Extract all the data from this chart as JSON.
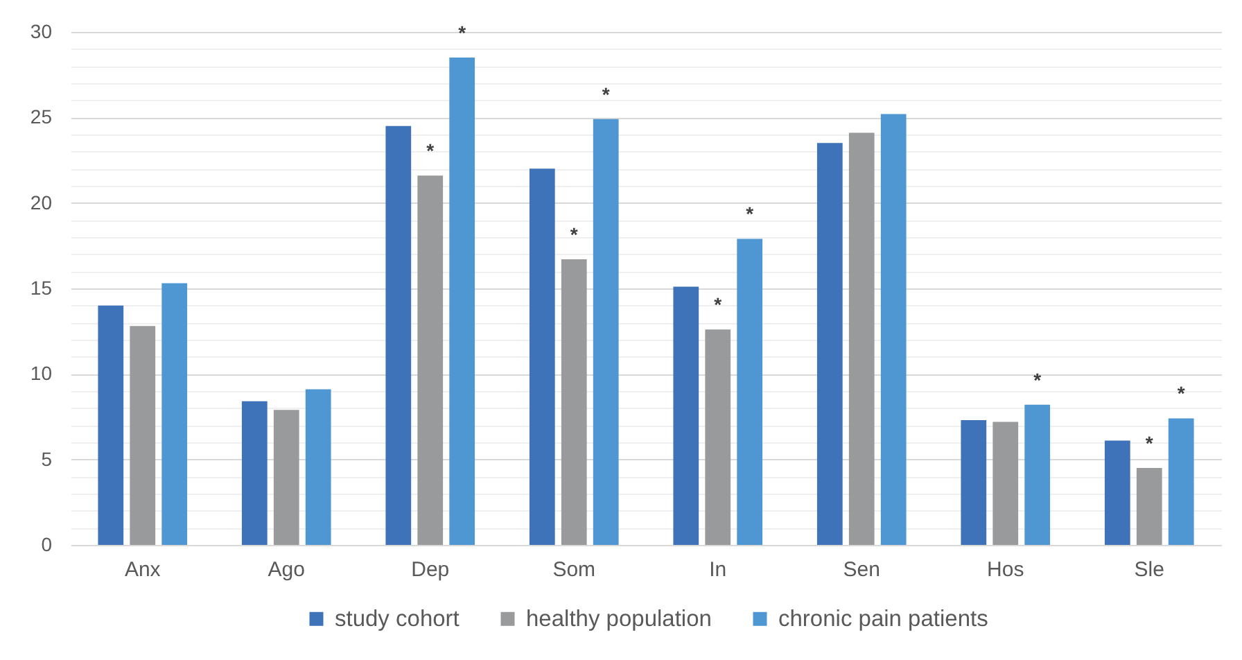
{
  "chart_data": {
    "type": "bar",
    "categories": [
      "Anx",
      "Ago",
      "Dep",
      "Som",
      "In",
      "Sen",
      "Hos",
      "Sle"
    ],
    "series": [
      {
        "name": "study cohort",
        "color": "#3e72b9",
        "values": [
          14.0,
          8.4,
          24.5,
          22.0,
          15.1,
          23.5,
          7.3,
          6.1
        ]
      },
      {
        "name": "healthy population",
        "color": "#989a9b",
        "values": [
          12.8,
          7.9,
          21.6,
          16.7,
          12.6,
          24.1,
          7.2,
          4.5
        ],
        "value_labels": [
          null,
          null,
          "*",
          "*",
          "*",
          null,
          null,
          "*"
        ]
      },
      {
        "name": "chronic pain patients",
        "color": "#4f97d2",
        "values": [
          15.3,
          9.1,
          28.5,
          24.9,
          17.9,
          25.2,
          8.2,
          7.4
        ],
        "value_labels": [
          null,
          null,
          "*",
          "*",
          "*",
          null,
          "*",
          "*"
        ]
      }
    ],
    "ylim": [
      0,
      30
    ],
    "yticks": [
      0,
      {
        "value": 1,
        "label": null
      },
      {
        "value": 2,
        "label": null
      },
      {
        "value": 3,
        "label": null
      },
      {
        "value": 4,
        "label": null
      },
      5,
      {
        "value": 6,
        "label": null
      },
      {
        "value": 7,
        "label": null
      },
      {
        "value": 8,
        "label": null
      },
      {
        "value": 9,
        "label": null
      },
      10,
      {
        "value": 11,
        "label": null
      },
      {
        "value": 12,
        "label": null
      },
      {
        "value": 13,
        "label": null
      },
      {
        "value": 14,
        "label": null
      },
      15,
      {
        "value": 16,
        "label": null
      },
      {
        "value": 17,
        "label": null
      },
      {
        "value": 18,
        "label": null
      },
      {
        "value": 19,
        "label": null
      },
      20,
      {
        "value": 21,
        "label": null
      },
      {
        "value": 22,
        "label": null
      },
      {
        "value": 23,
        "label": null
      },
      {
        "value": 24,
        "label": null
      },
      25,
      {
        "value": 26,
        "label": null
      },
      {
        "value": 27,
        "label": null
      },
      {
        "value": 28,
        "label": null
      },
      {
        "value": 29,
        "label": null
      },
      30
    ],
    "grid": "y",
    "legend": "bottom"
  }
}
